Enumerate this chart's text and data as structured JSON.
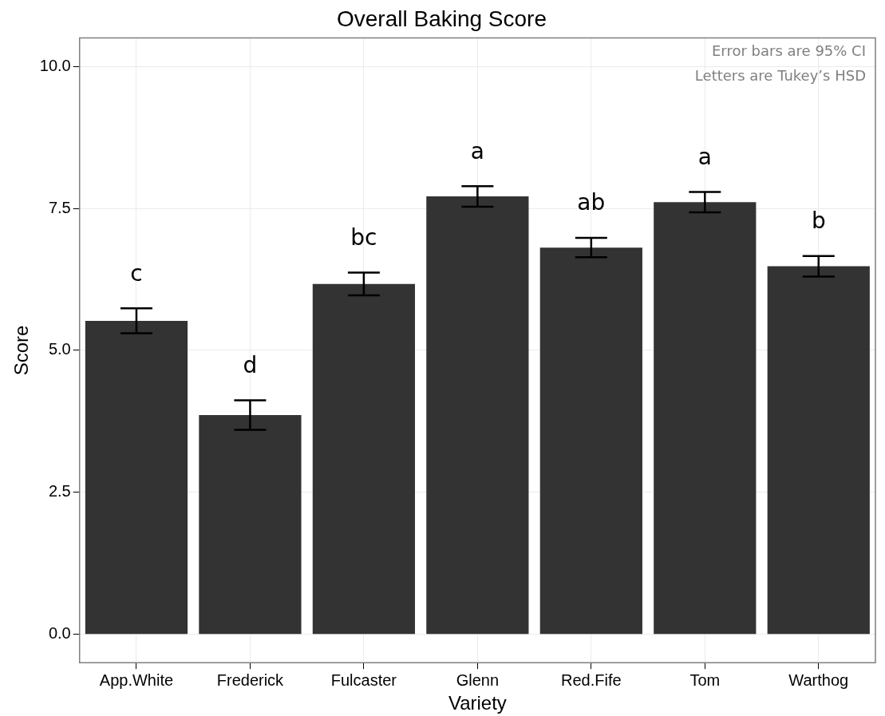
{
  "chart_data": {
    "type": "bar",
    "title": "Overall Baking Score",
    "xlabel": "Variety",
    "ylabel": "Score",
    "categories": [
      "App.White",
      "Frederick",
      "Fulcaster",
      "Glenn",
      "Red.Fife",
      "Tom",
      "Warthog"
    ],
    "values": [
      5.52,
      3.86,
      6.17,
      7.71,
      6.81,
      7.61,
      6.48
    ],
    "errors": [
      0.22,
      0.26,
      0.2,
      0.18,
      0.17,
      0.18,
      0.18
    ],
    "color": "#333333",
    "ylim": [
      -0.5,
      10.5
    ],
    "yticks": [
      {
        "value": 0,
        "label": "0.0"
      },
      {
        "value": 2.5,
        "label": "2.5"
      },
      {
        "value": 5,
        "label": "5.0"
      },
      {
        "value": 7.5,
        "label": "7.5"
      },
      {
        "value": 10,
        "label": "10.0"
      }
    ],
    "grid": true,
    "value_labels": [
      "c",
      "d",
      "bc",
      "a",
      "ab",
      "a",
      "b"
    ],
    "annotations": [
      "Error bars are 95% CI",
      "Letters are Tukey’s HSD"
    ]
  }
}
